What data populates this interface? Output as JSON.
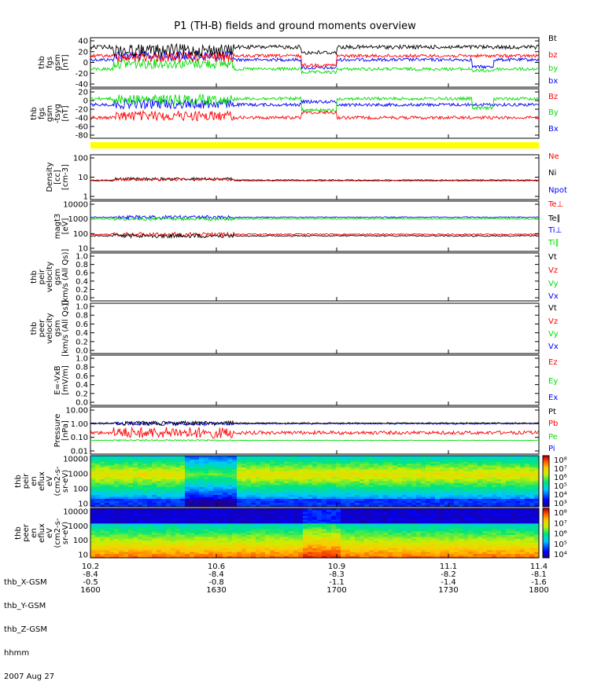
{
  "title": "P1 (TH-B) fields and ground moments overview",
  "colors": {
    "black": "#000000",
    "red": "#ff0000",
    "green": "#00dd00",
    "blue": "#0000ff",
    "yellow": "#ffff00"
  },
  "chart_data": [
    {
      "type": "line",
      "ylabel": [
        "thb",
        "fgs",
        "gsm",
        "[nT]"
      ],
      "yticks": [
        "40",
        "20",
        "0",
        "-20",
        "-40"
      ],
      "ylim": [
        -45,
        45
      ],
      "series": [
        {
          "name": "Bt",
          "color": "#000000"
        },
        {
          "name": "bz",
          "color": "#ff0000"
        },
        {
          "name": "by",
          "color": "#00dd00"
        },
        {
          "name": "bx",
          "color": "#0000ff"
        }
      ]
    },
    {
      "type": "line",
      "ylabel": [
        "thb",
        "fgs",
        "gsm",
        "-tsyg",
        "[nT]"
      ],
      "yticks": [
        "20",
        "0",
        "-20",
        "-40",
        "-60",
        "-80"
      ],
      "ylim": [
        -90,
        25
      ],
      "series": [
        {
          "name": "Bz",
          "color": "#ff0000"
        },
        {
          "name": "By",
          "color": "#00dd00"
        },
        {
          "name": "Bx",
          "color": "#0000ff"
        }
      ]
    },
    {
      "type": "line",
      "ylabel": [
        "Density",
        "[cc]",
        "[cm-3]"
      ],
      "yticks": [
        "100",
        "10",
        "1"
      ],
      "log": true,
      "series": [
        {
          "name": "Ne",
          "color": "#ff0000"
        },
        {
          "name": "Ni",
          "color": "#000000"
        },
        {
          "name": "Npot",
          "color": "#0000ff"
        }
      ]
    },
    {
      "type": "line",
      "ylabel": [
        "magt3",
        "[eV]"
      ],
      "yticks": [
        "10000",
        "1000",
        "100",
        "10"
      ],
      "log": true,
      "series": [
        {
          "name": "Te⊥",
          "color": "#ff0000"
        },
        {
          "name": "Te∥",
          "color": "#000000"
        },
        {
          "name": "Ti⊥",
          "color": "#0000ff"
        },
        {
          "name": "Ti∥",
          "color": "#00dd00"
        }
      ]
    },
    {
      "type": "line",
      "ylabel": [
        "thb",
        "peir",
        "velocity",
        "gsm",
        "[km/s (All Qs)]"
      ],
      "yticks": [
        "1.0",
        "0.8",
        "0.6",
        "0.4",
        "0.2",
        "0.0"
      ],
      "ylim": [
        0,
        1
      ],
      "series": [
        {
          "name": "Vt",
          "color": "#000000"
        },
        {
          "name": "Vz",
          "color": "#ff0000"
        },
        {
          "name": "Vy",
          "color": "#00dd00"
        },
        {
          "name": "Vx",
          "color": "#0000ff"
        }
      ]
    },
    {
      "type": "line",
      "ylabel": [
        "thb",
        "peer",
        "velocity",
        "gsm",
        "[km/s (All Qs)]"
      ],
      "yticks": [
        "1.0",
        "0.8",
        "0.6",
        "0.4",
        "0.2",
        "0.0"
      ],
      "ylim": [
        0,
        1
      ],
      "series": [
        {
          "name": "Vt",
          "color": "#000000"
        },
        {
          "name": "Vz",
          "color": "#ff0000"
        },
        {
          "name": "Vy",
          "color": "#00dd00"
        },
        {
          "name": "Vx",
          "color": "#0000ff"
        }
      ]
    },
    {
      "type": "line",
      "ylabel": [
        "E=-VxB",
        "[mV/m]"
      ],
      "yticks": [
        "1.0",
        "0.8",
        "0.6",
        "0.4",
        "0.2",
        "0.0"
      ],
      "ylim": [
        0,
        1
      ],
      "series": [
        {
          "name": "Ez",
          "color": "#ff0000"
        },
        {
          "name": "Ey",
          "color": "#00dd00"
        },
        {
          "name": "Ex",
          "color": "#0000ff"
        }
      ]
    },
    {
      "type": "line",
      "ylabel": [
        "Pressure",
        "[nPa]"
      ],
      "yticks": [
        "10.00",
        "1.00",
        "0.10",
        "0.01"
      ],
      "log": true,
      "series": [
        {
          "name": "Pt",
          "color": "#000000"
        },
        {
          "name": "Pb",
          "color": "#ff0000"
        },
        {
          "name": "Pe",
          "color": "#00dd00"
        },
        {
          "name": "Pi",
          "color": "#0000ff"
        }
      ]
    },
    {
      "type": "heatmap",
      "ylabel": [
        "thb",
        "peir",
        "en",
        "eflux",
        "eV",
        "(cm2-s-",
        "sr-eV)"
      ],
      "yticks": [
        "10000",
        "1000",
        "100",
        "10"
      ],
      "colorbar": [
        "10⁸",
        "10⁷",
        "10⁶",
        "10⁵",
        "10⁴",
        "10³"
      ]
    },
    {
      "type": "heatmap",
      "ylabel": [
        "thb",
        "peer",
        "en",
        "eflux",
        "eV",
        "(cm2-s-",
        "sr-eV)"
      ],
      "yticks": [
        "10000",
        "1000",
        "100",
        "10"
      ],
      "colorbar": [
        "10⁸",
        "10⁷",
        "10⁶",
        "10⁵",
        "10⁴"
      ]
    }
  ],
  "x_axis": {
    "rows": [
      "thb_X-GSM",
      "thb_Y-GSM",
      "thb_Z-GSM",
      "hhmm",
      "2007 Aug 27"
    ],
    "ticks": [
      {
        "x": "10.2",
        "y": "-8.4",
        "z": "-0.5",
        "hhmm": "1600"
      },
      {
        "x": "10.6",
        "y": "-8.4",
        "z": "-0.8",
        "hhmm": "1630"
      },
      {
        "x": "10.9",
        "y": "-8.3",
        "z": "-1.1",
        "hhmm": "1700"
      },
      {
        "x": "11.1",
        "y": "-8.2",
        "z": "-1.4",
        "hhmm": "1730"
      },
      {
        "x": "11.4",
        "y": "-8.1",
        "z": "-1.6",
        "hhmm": "1800"
      }
    ]
  }
}
